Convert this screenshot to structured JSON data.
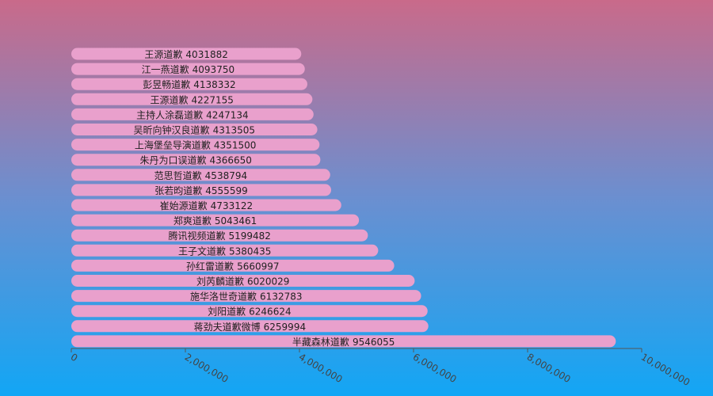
{
  "chart_data": {
    "type": "hbar",
    "categories": [
      "王源道歉",
      "江一燕道歉",
      "彭昱畅道歉",
      "王源道歉",
      "主持人涂磊道歉",
      "吴昕向钟汉良道歉",
      "上海堡垒导演道歉",
      "朱丹为口误道歉",
      "范思哲道歉",
      "张若昀道歉",
      "崔始源道歉",
      "郑爽道歉",
      "腾讯视频道歉",
      "王子文道歉",
      "孙红雷道歉",
      "刘芮麟道歉",
      "施华洛世奇道歉",
      "刘阳道歉",
      "蒋劲夫道歉微博",
      "半藏森林道歉"
    ],
    "values": [
      4031882,
      4093750,
      4138332,
      4227155,
      4247134,
      4313505,
      4351500,
      4366650,
      4538794,
      4555599,
      4733122,
      5043461,
      5199482,
      5380435,
      5660997,
      6020029,
      6132783,
      6246624,
      6259994,
      9546055
    ],
    "color": "#e9a0cc",
    "xlim": [
      0,
      10000000
    ],
    "xticks": [
      0,
      {
        "value": 2000000,
        "label": "2,000,000"
      },
      {
        "value": 4000000,
        "label": "4,000,000"
      },
      {
        "value": 6000000,
        "label": "6,000,000"
      },
      {
        "value": 8000000,
        "label": "8,000,000"
      },
      {
        "value": 10000000,
        "label": "10,000,000"
      }
    ]
  }
}
